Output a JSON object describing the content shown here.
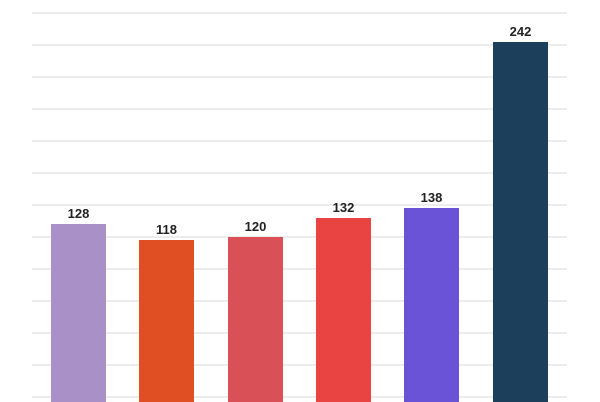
{
  "chart_data": {
    "type": "bar",
    "title": "",
    "xlabel": "",
    "ylabel": "",
    "categories": [
      "",
      "",
      "",
      "",
      "",
      ""
    ],
    "values": [
      128,
      118,
      120,
      132,
      138,
      242
    ],
    "value_labels": [
      "128",
      "118",
      "120",
      "132",
      "138",
      "242"
    ],
    "colors": [
      "#a990c6",
      "#e04e24",
      "#d95156",
      "#ea4442",
      "#6b53d8",
      "#1c3f5c"
    ],
    "gridlines": [
      0,
      20,
      40,
      60,
      80,
      100,
      120,
      140,
      160,
      180,
      200,
      220,
      240,
      260
    ],
    "grid": true,
    "legend": null,
    "ylim": [
      0,
      260
    ]
  }
}
